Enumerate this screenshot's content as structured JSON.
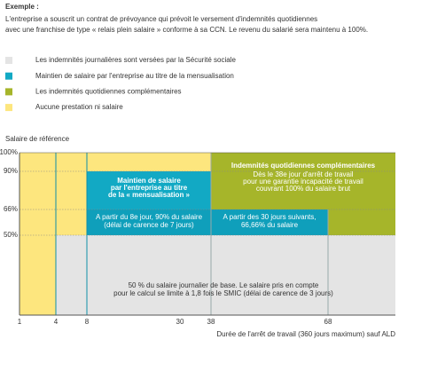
{
  "intro": {
    "title": "Exemple :",
    "lines": [
      "L'entreprise a souscrit un contrat de prévoyance qui prévoit le versement d'indemnités quotidiennes",
      "avec une franchise de type « relais plein salaire » conforme à sa CCN. Le revenu du salarié sera maintenu à 100%."
    ]
  },
  "legend": [
    {
      "label": "Les indemnités journalières sont versées par la Sécurité sociale",
      "color": "#e4e4e4"
    },
    {
      "label": "Maintien de salaire par l'entreprise au titre de la mensualisation",
      "color": "#12a9c4"
    },
    {
      "label": "Les indemnités quotidiennes complémentaires",
      "color": "#a6b52a"
    },
    {
      "label": "Aucune prestation ni salaire",
      "color": "#fde67e"
    }
  ],
  "chart": {
    "y_axis_title": "Salaire de référence",
    "y_labels": [
      "100%",
      "90%",
      "66%",
      "50%"
    ],
    "x_labels": [
      "1",
      "4",
      "8",
      "30",
      "38",
      "68"
    ],
    "x_axis_title": "Durée de l'arrêt de travail (360 jours maximum) sauf ALD",
    "maintien": {
      "title_lines": [
        "Maintien de salaire",
        "par l'entreprise au titre",
        "de la « mensualisation »"
      ]
    },
    "indemnites": {
      "title": "Indemnités quotidiennes complémentaires",
      "lines": [
        "Dès le 38e jour d'arrêt de travail",
        "pour une garantie incapacité de travail",
        "couvrant 100% du salaire brut"
      ]
    },
    "palier1": {
      "lines": [
        "A partir du 8e jour, 90% du salaire",
        "(délai de carence de 7 jours)"
      ]
    },
    "palier2": {
      "lines": [
        "A partir des 30 jours suivants,",
        "66,66% du salaire"
      ]
    },
    "secu": {
      "lines": [
        "50 % du salaire journalier de base. Le salaire pris en compte",
        "pour le calcul se limite à 1,8 fois le SMIC (délai de carence de 3 jours)"
      ]
    }
  }
}
